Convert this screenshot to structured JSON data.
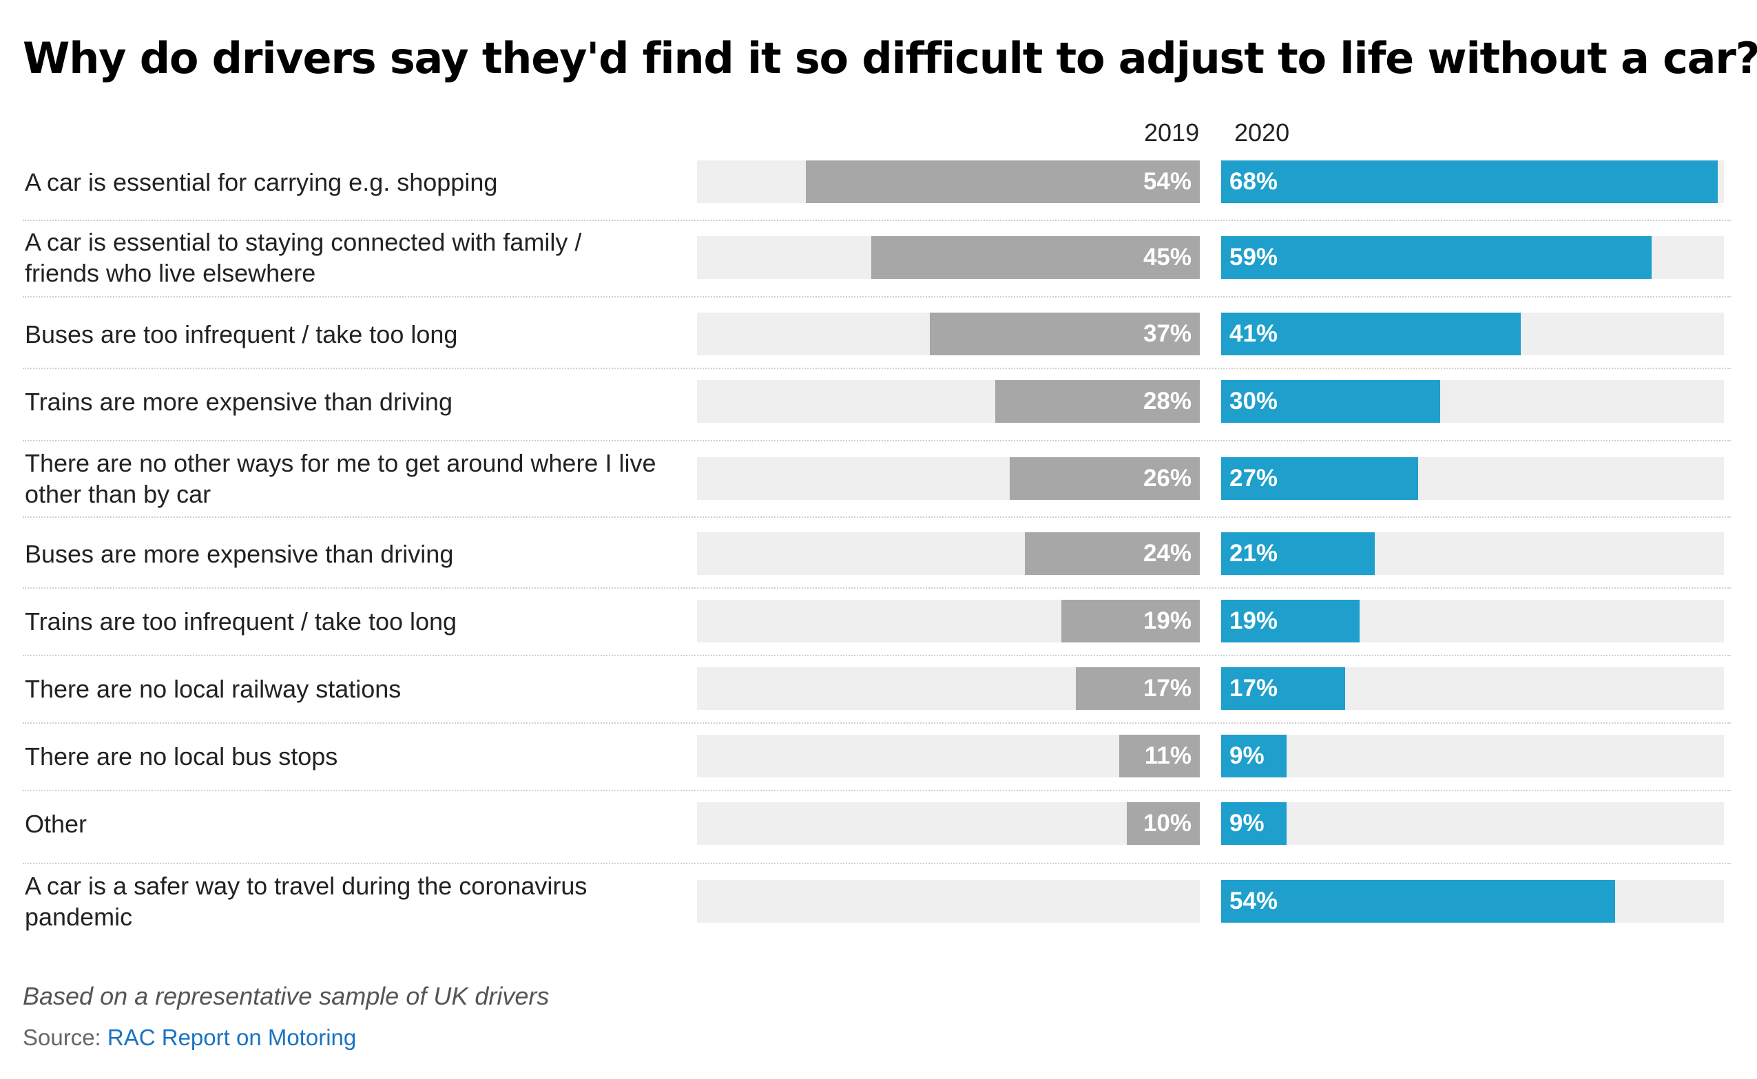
{
  "chart_data": {
    "type": "bar",
    "title": "Why do drivers say they'd find it so difficult to adjust to life without a car?",
    "categories": [
      "A car is essential for carrying e.g. shopping",
      "A car is essential to staying connected with family / friends who live elsewhere",
      "Buses are too infrequent / take too long",
      "Trains are more expensive than driving",
      "There are no other ways for me to get around where I live other than by car",
      "Buses are more expensive than driving",
      "Trains are too infrequent / take too long",
      "There are no local railway stations",
      "There are no local bus stops",
      "Other",
      "A car is a safer way to travel during the coronavirus pandemic"
    ],
    "category_lines": [
      [
        "A car is essential for carrying e.g. shopping"
      ],
      [
        "A car is essential to staying connected with family /",
        "friends who live elsewhere"
      ],
      [
        "Buses are too infrequent / take too long"
      ],
      [
        "Trains are more expensive than driving"
      ],
      [
        "There are no other ways for me to get around where I live",
        "other than by car"
      ],
      [
        "Buses are more expensive than driving"
      ],
      [
        "Trains are too infrequent / take too long"
      ],
      [
        "There are no local railway stations"
      ],
      [
        "There are no local bus stops"
      ],
      [
        "Other"
      ],
      [
        "A car is a safer way to travel during the coronavirus",
        "pandemic"
      ]
    ],
    "series": [
      {
        "name": "2019",
        "color": "#a7a7a7",
        "values": [
          54,
          45,
          37,
          28,
          26,
          24,
          19,
          17,
          11,
          10,
          null
        ],
        "labels": [
          "54%",
          "45%",
          "37%",
          "28%",
          "26%",
          "24%",
          "19%",
          "17%",
          "11%",
          "10%",
          ""
        ]
      },
      {
        "name": "2020",
        "color": "#1e9fcc",
        "values": [
          68,
          59,
          41,
          30,
          27,
          21,
          19,
          17,
          9,
          9,
          54
        ],
        "labels": [
          "68%",
          "59%",
          "41%",
          "30%",
          "27%",
          "21%",
          "19%",
          "17%",
          "9%",
          "9%",
          "54%"
        ]
      }
    ],
    "value_unit": "%",
    "xlim": [
      0,
      70
    ],
    "track_color": "#efefef",
    "legend": "column headers above bars",
    "grid": false
  },
  "footer": {
    "note": "Based on a representative sample of UK drivers",
    "source_prefix": "Source: ",
    "source_link": "RAC Report on Motoring",
    "link_color": "#1a73c2"
  }
}
